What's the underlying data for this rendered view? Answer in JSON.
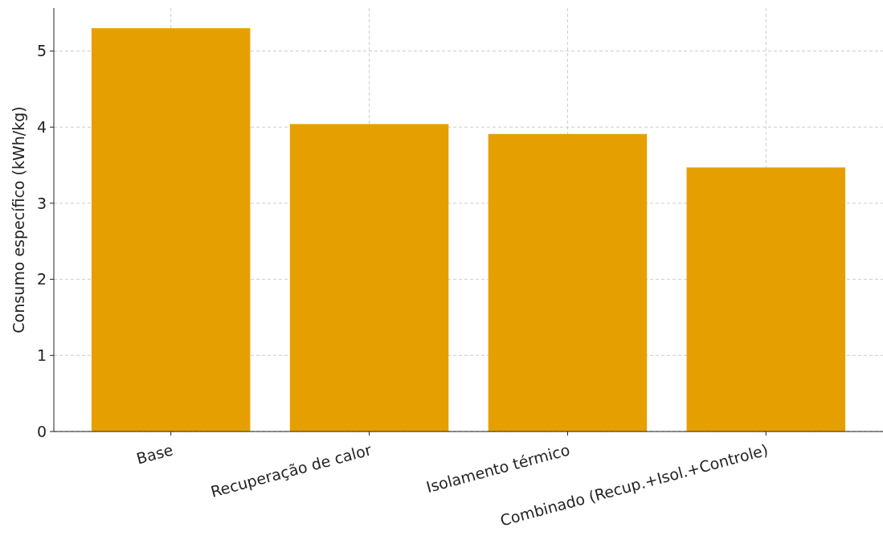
{
  "chart_data": {
    "type": "bar",
    "categories": [
      "Base",
      "Recuperação de calor",
      "Isolamento térmico",
      "Combinado (Recup.+Isol.+Controle)"
    ],
    "values": [
      5.3,
      4.04,
      3.91,
      3.47
    ],
    "color": "#e69f00",
    "ylabel": "Consumo específico (kWh/kg)",
    "ylim": [
      0,
      5.565
    ],
    "yticks": [
      0,
      1,
      2,
      3,
      4,
      5
    ],
    "grid": true
  }
}
